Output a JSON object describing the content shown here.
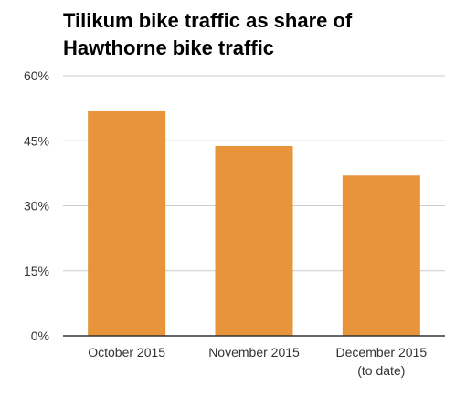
{
  "chart_data": {
    "type": "bar",
    "title": "Tilikum bike traffic as share of Hawthorne bike traffic",
    "categories": [
      [
        "October 2015"
      ],
      [
        "November 2015"
      ],
      [
        "December 2015",
        "(to date)"
      ]
    ],
    "values": [
      51.8,
      43.8,
      37.0
    ],
    "ylim": [
      0,
      60
    ],
    "yticks": [
      {
        "value": 0,
        "label": "0%"
      },
      {
        "value": 15,
        "label": "15%"
      },
      {
        "value": 30,
        "label": "30%"
      },
      {
        "value": 45,
        "label": "45%"
      },
      {
        "value": 60,
        "label": "60%"
      }
    ],
    "grid": true,
    "legend": "none",
    "bar_color": "#E8943A",
    "grid_color": "#CCCCCC",
    "axis_color": "#333333"
  }
}
